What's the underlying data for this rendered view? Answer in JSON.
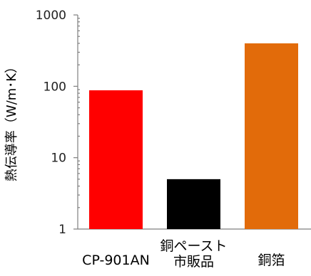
{
  "chart_data": {
    "type": "bar",
    "scale": "log",
    "ylim": [
      1,
      1000
    ],
    "yticks": [
      "1",
      "10",
      "100",
      "1000"
    ],
    "ylabel": "熱伝導率（W/m･K）",
    "xlabel": "",
    "title": "",
    "grid": false,
    "categories": [
      {
        "lines": [
          "CP-901AN"
        ]
      },
      {
        "lines": [
          "銅ペースト",
          "市販品"
        ]
      },
      {
        "lines": [
          "銅箔"
        ]
      }
    ],
    "values": [
      88,
      5,
      400
    ],
    "colors": [
      "#ff0000",
      "#000000",
      "#e26b0a"
    ]
  }
}
